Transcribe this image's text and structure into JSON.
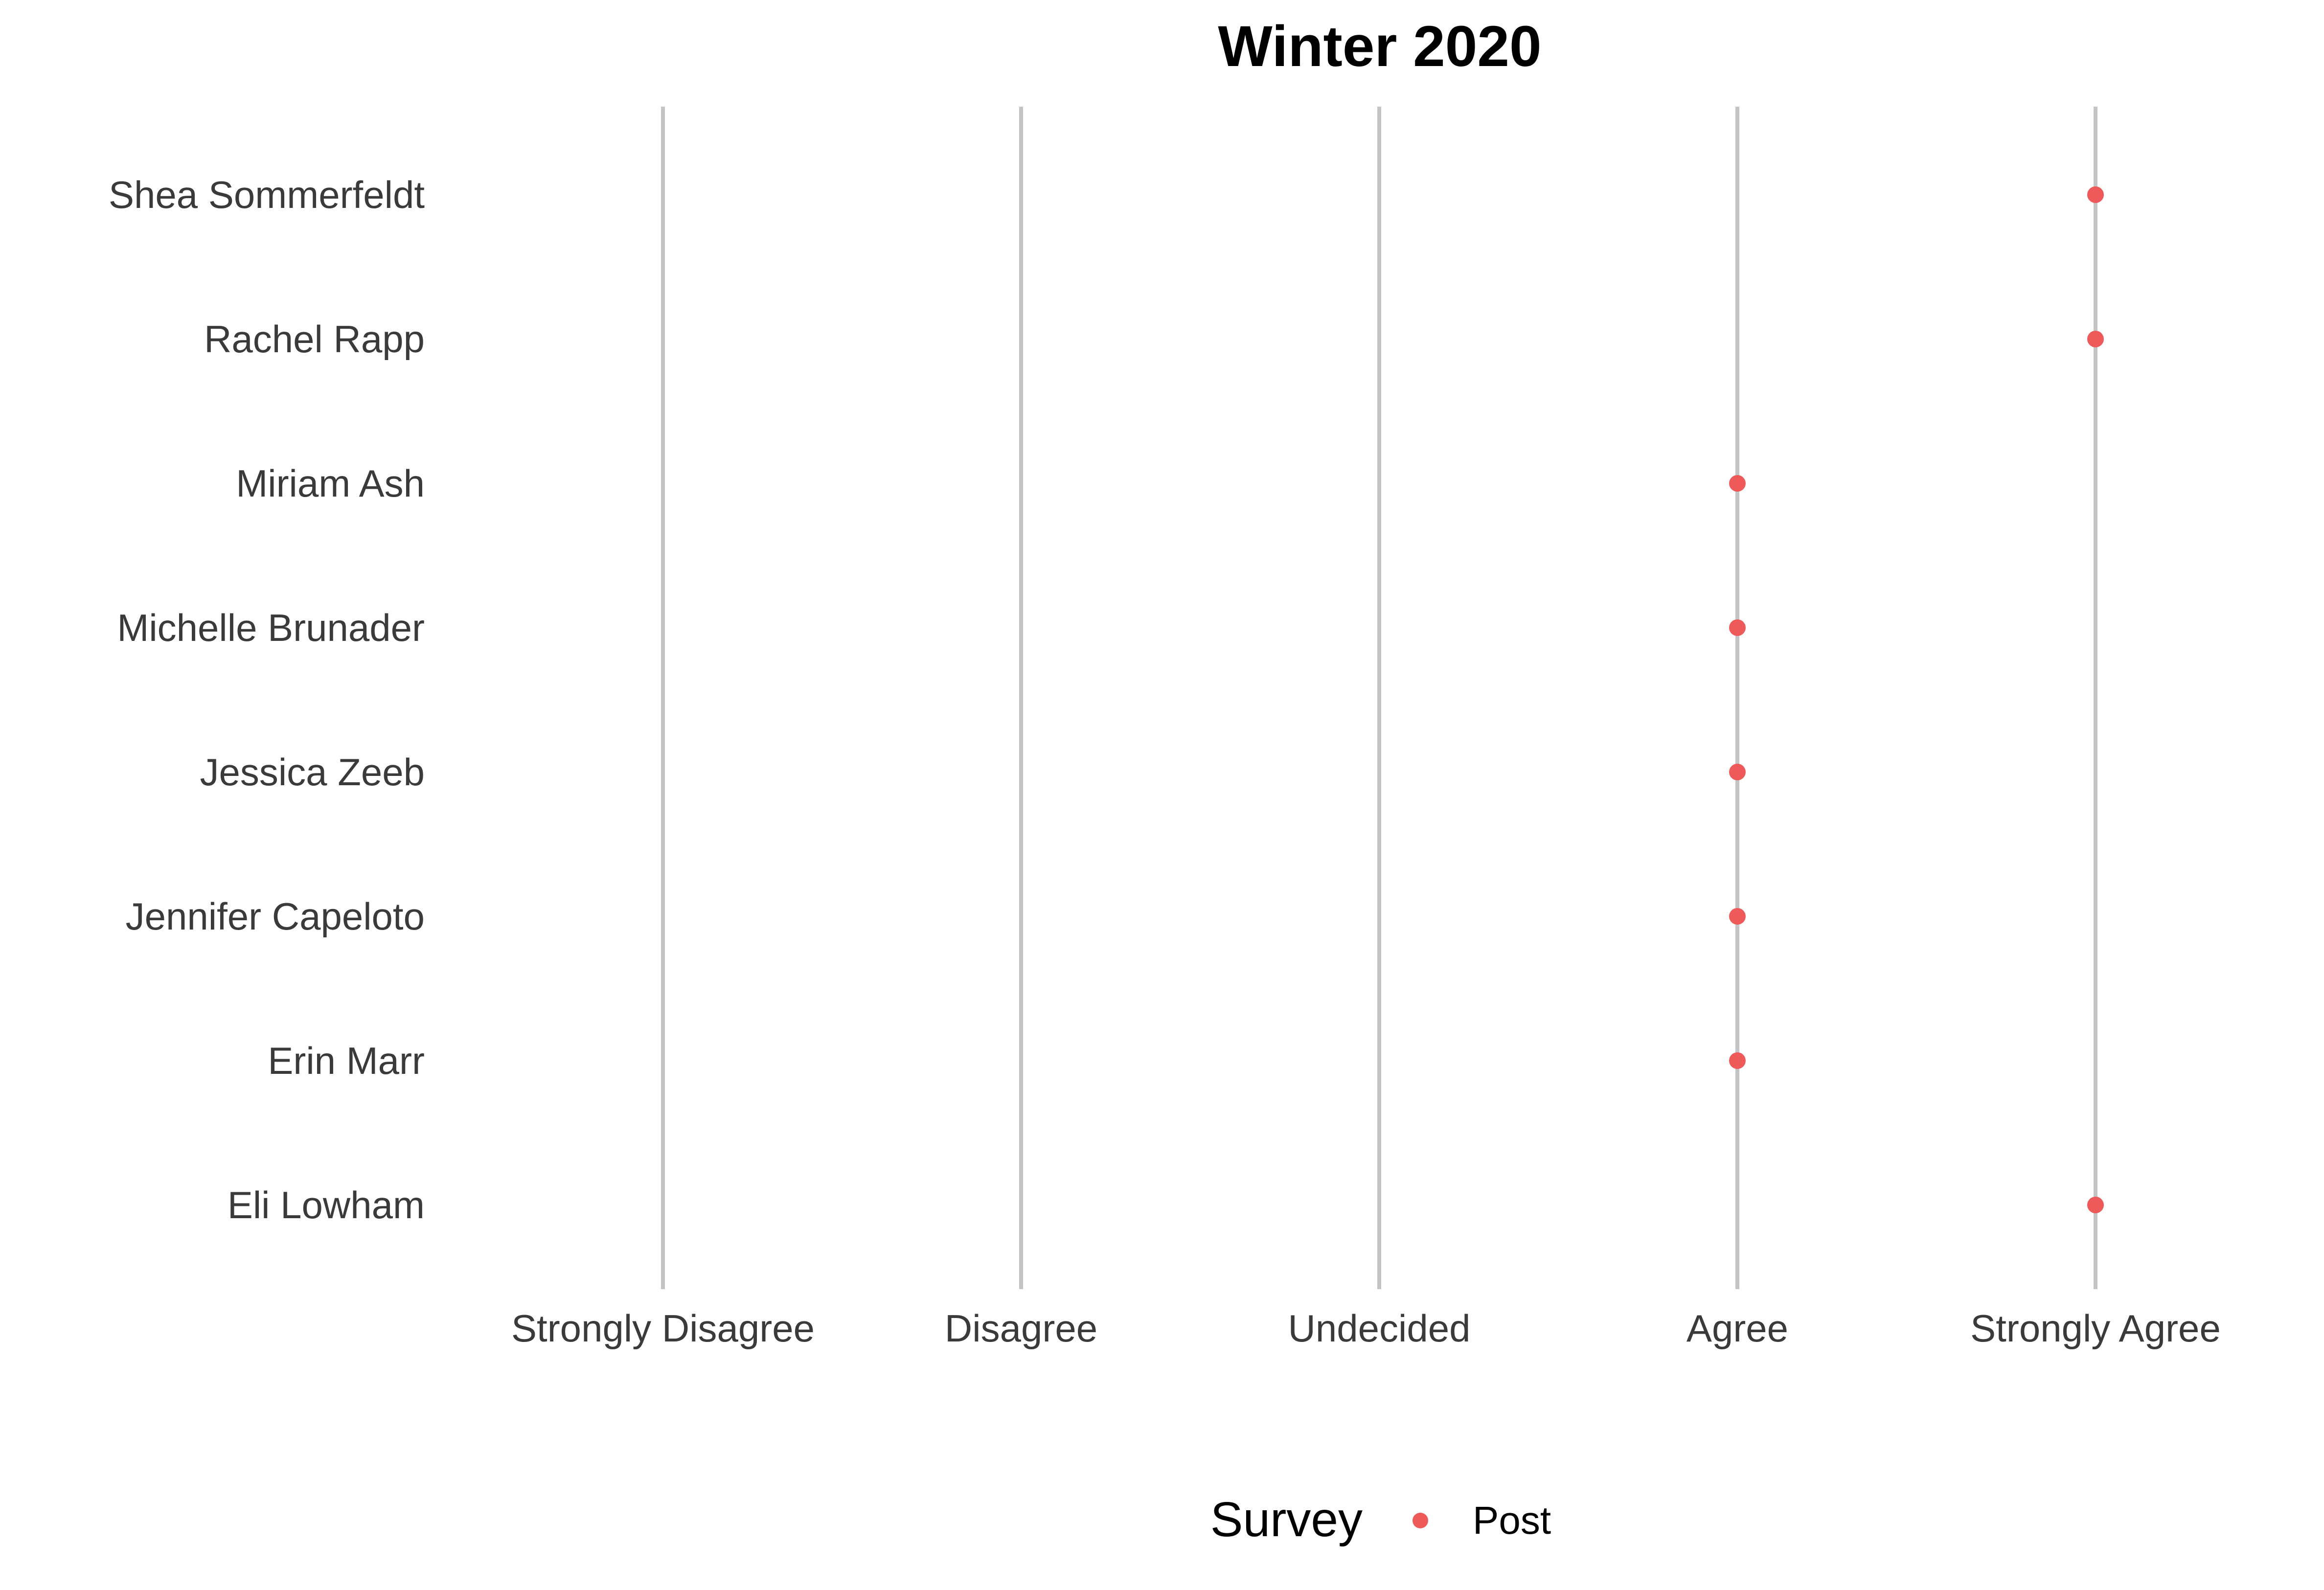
{
  "chart_data": {
    "type": "scatter",
    "title": "Winter 2020",
    "x_categories": [
      "Strongly Disagree",
      "Disagree",
      "Undecided",
      "Agree",
      "Strongly Agree"
    ],
    "y_categories": [
      "Shea Sommerfeldt",
      "Rachel Rapp",
      "Miriam Ash",
      "Michelle Brunader",
      "Jessica Zeeb",
      "Jennifer Capeloto",
      "Erin Marr",
      "Eli Lowham"
    ],
    "series": [
      {
        "name": "Post",
        "color": "#ee5a5a",
        "points": [
          {
            "y": "Shea Sommerfeldt",
            "x": "Strongly Agree"
          },
          {
            "y": "Rachel Rapp",
            "x": "Strongly Agree"
          },
          {
            "y": "Miriam Ash",
            "x": "Agree"
          },
          {
            "y": "Michelle Brunader",
            "x": "Agree"
          },
          {
            "y": "Jessica Zeeb",
            "x": "Agree"
          },
          {
            "y": "Jennifer Capeloto",
            "x": "Agree"
          },
          {
            "y": "Erin Marr",
            "x": "Agree"
          },
          {
            "y": "Eli Lowham",
            "x": "Strongly Agree"
          }
        ]
      }
    ],
    "grid": "vertical",
    "legend": {
      "title": "Survey",
      "position": "bottom"
    }
  }
}
